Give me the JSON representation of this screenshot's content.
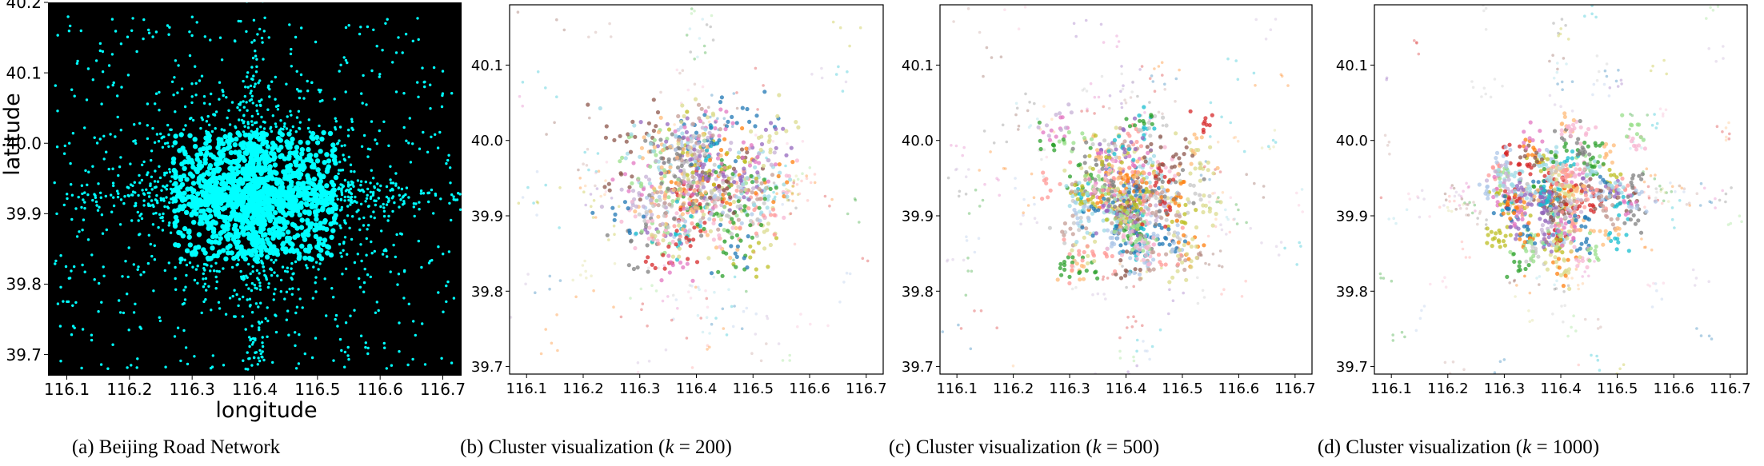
{
  "colors": {
    "map_background": "#000000",
    "road_color": "#00ffff",
    "cluster_palette": [
      "#1f77b4",
      "#ff7f0e",
      "#2ca02c",
      "#d62728",
      "#9467bd",
      "#8c564b",
      "#e377c2",
      "#7f7f7f",
      "#bcbd22",
      "#17becf",
      "#aec7e8",
      "#ffbb78",
      "#98df8a",
      "#ff9896",
      "#c5b0d5",
      "#c49c94",
      "#f7b6d2",
      "#c7c7c7",
      "#dbdb8d",
      "#9edae5"
    ]
  },
  "chart_data": [
    {
      "type": "scatter",
      "caption": "(a) Beijing Road Network",
      "xlabel": "longitude",
      "ylabel": "latitude",
      "xlim": [
        116.07,
        116.73
      ],
      "ylim": [
        39.67,
        40.2
      ],
      "xticks": [
        "116.1",
        "116.2",
        "116.3",
        "116.4",
        "116.5",
        "116.6",
        "116.7"
      ],
      "yticks": [
        "39.7",
        "39.8",
        "39.9",
        "40.0",
        "40.1",
        "40.2"
      ],
      "series": [
        {
          "description_points": "dense road points centered near longitude 116.40, latitude 39.92"
        }
      ]
    },
    {
      "type": "scatter",
      "caption_prefix": "(b) Cluster visualization (",
      "caption_k": "k",
      "caption_suffix": " = 200)",
      "k": 200,
      "xlim": [
        116.07,
        116.73
      ],
      "ylim": [
        39.69,
        40.18
      ],
      "xticks": [
        "116.1",
        "116.2",
        "116.3",
        "116.4",
        "116.5",
        "116.6",
        "116.7"
      ],
      "yticks": [
        "39.7",
        "39.8",
        "39.9",
        "40.0",
        "40.1"
      ]
    },
    {
      "type": "scatter",
      "caption_prefix": "(c) Cluster visualization (",
      "caption_k": "k",
      "caption_suffix": " = 500)",
      "k": 500,
      "xlim": [
        116.07,
        116.73
      ],
      "ylim": [
        39.69,
        40.18
      ],
      "xticks": [
        "116.1",
        "116.2",
        "116.3",
        "116.4",
        "116.5",
        "116.6",
        "116.7"
      ],
      "yticks": [
        "39.7",
        "39.8",
        "39.9",
        "40.0",
        "40.1"
      ]
    },
    {
      "type": "scatter",
      "caption_prefix": "(d) Cluster visualization (",
      "caption_k": "k",
      "caption_suffix": " = 1000)",
      "k": 1000,
      "xlim": [
        116.07,
        116.73
      ],
      "ylim": [
        39.69,
        40.18
      ],
      "xticks": [
        "116.1",
        "116.2",
        "116.3",
        "116.4",
        "116.5",
        "116.6",
        "116.7"
      ],
      "yticks": [
        "39.7",
        "39.8",
        "39.9",
        "40.0",
        "40.1"
      ]
    }
  ]
}
